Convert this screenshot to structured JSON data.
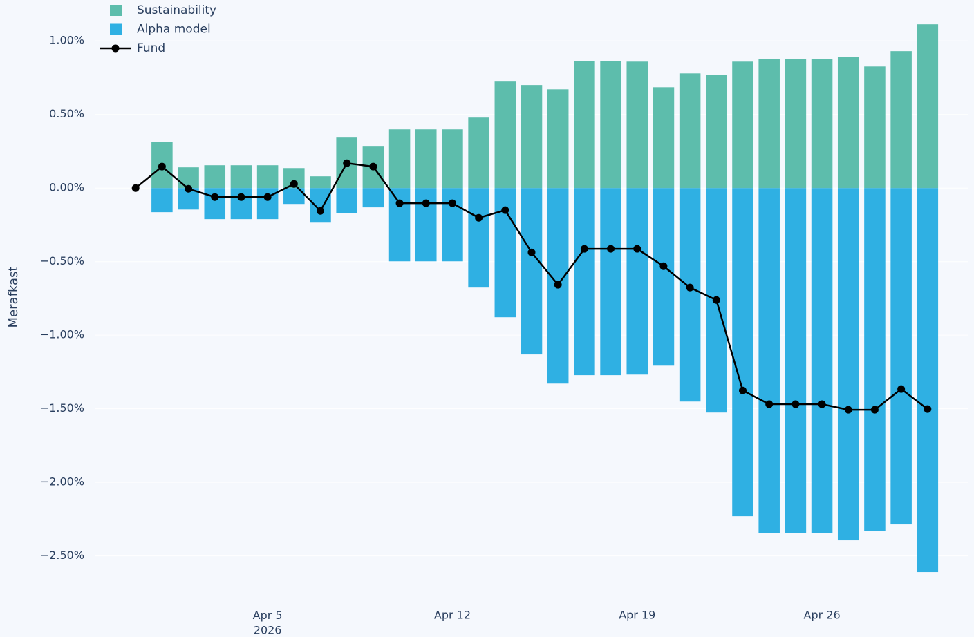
{
  "chart_data": {
    "type": "bar",
    "y_label": "Merafkast",
    "x": [
      "2026-03-31",
      "2026-04-01",
      "2026-04-02",
      "2026-04-03",
      "2026-04-04",
      "2026-04-05",
      "2026-04-06",
      "2026-04-07",
      "2026-04-08",
      "2026-04-09",
      "2026-04-10",
      "2026-04-11",
      "2026-04-12",
      "2026-04-13",
      "2026-04-14",
      "2026-04-15",
      "2026-04-16",
      "2026-04-17",
      "2026-04-18",
      "2026-04-19",
      "2026-04-20",
      "2026-04-21",
      "2026-04-22",
      "2026-04-23",
      "2026-04-24",
      "2026-04-25",
      "2026-04-26",
      "2026-04-27",
      "2026-04-28",
      "2026-04-29",
      "2026-04-30"
    ],
    "series": [
      {
        "name": "Sustainability",
        "type": "bar",
        "color": "#5dbdac",
        "values": [
          null,
          0.315,
          0.141,
          0.155,
          0.155,
          0.155,
          0.136,
          0.08,
          0.343,
          0.282,
          0.399,
          0.399,
          0.399,
          0.479,
          0.728,
          0.7,
          0.671,
          0.864,
          0.864,
          0.859,
          0.685,
          0.779,
          0.77,
          0.859,
          0.878,
          0.878,
          0.878,
          0.892,
          0.826,
          0.93,
          1.113
        ]
      },
      {
        "name": "Alpha model",
        "type": "bar",
        "color": "#2fb0e3",
        "values": [
          null,
          -0.164,
          -0.146,
          -0.211,
          -0.211,
          -0.211,
          -0.108,
          -0.235,
          -0.169,
          -0.131,
          -0.498,
          -0.498,
          -0.498,
          -0.676,
          -0.878,
          -1.131,
          -1.329,
          -1.272,
          -1.272,
          -1.268,
          -1.207,
          -1.451,
          -1.526,
          -2.23,
          -2.343,
          -2.343,
          -2.343,
          -2.394,
          -2.329,
          -2.286,
          -2.61
        ]
      },
      {
        "name": "Fund",
        "type": "line",
        "color": "#000000",
        "values": [
          0,
          0.146,
          -0.005,
          -0.061,
          -0.061,
          -0.061,
          0.028,
          -0.155,
          0.169,
          0.146,
          -0.103,
          -0.103,
          -0.103,
          -0.202,
          -0.15,
          -0.437,
          -0.657,
          -0.413,
          -0.413,
          -0.413,
          -0.531,
          -0.676,
          -0.761,
          -1.376,
          -1.469,
          -1.469,
          -1.469,
          -1.507,
          -1.507,
          -1.366,
          -1.502
        ]
      }
    ],
    "xlim": [
      "2026-03-30",
      "2026-05-01"
    ],
    "xticks": [
      {
        "value": "2026-04-05",
        "label": "Apr 5\n2026"
      },
      {
        "value": "2026-04-12",
        "label": "Apr 12"
      },
      {
        "value": "2026-04-19",
        "label": "Apr 19"
      },
      {
        "value": "2026-04-26",
        "label": "Apr 26"
      }
    ],
    "ylim": [
      -2.76,
      1.25
    ],
    "yticks": [
      {
        "value": 1,
        "label": "1.00%"
      },
      {
        "value": 0.5,
        "label": "0.50%"
      },
      {
        "value": 0,
        "label": "0.00%"
      },
      {
        "value": -0.5,
        "label": "−0.50%"
      },
      {
        "value": -1,
        "label": "−1.00%"
      },
      {
        "value": -1.5,
        "label": "−1.50%"
      },
      {
        "value": -2,
        "label": "−2.00%"
      },
      {
        "value": -2.5,
        "label": "−2.50%"
      }
    ],
    "grid": true,
    "legend": "top-left"
  }
}
